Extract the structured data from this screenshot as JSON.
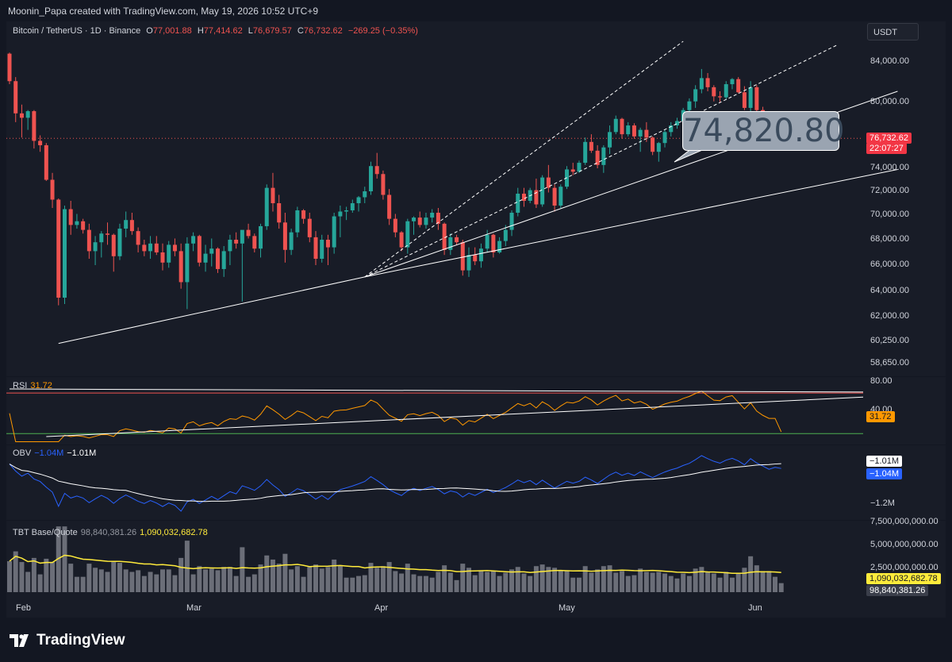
{
  "header": {
    "attribution": "Moonin_Papa created with TradingView.com, May 19, 2026 10:52 UTC+9"
  },
  "symbol": {
    "name": "Bitcoin / TetherUS · 1D · Binance",
    "o_label": "O",
    "o_value": "77,001.88",
    "h_label": "H",
    "h_value": "77,414.62",
    "l_label": "L",
    "l_value": "76,679.57",
    "c_label": "C",
    "c_value": "76,732.62",
    "change": "−269.25 (−0.35%)"
  },
  "currency_button": "USDT",
  "price_axis": {
    "ticks": [
      "84,000.00",
      "80,000.00",
      "74,000.00",
      "72,000.00",
      "70,000.00",
      "68,000.00",
      "66,000.00",
      "64,000.00",
      "62,000.00",
      "60,250.00",
      "58,650.00"
    ],
    "last_price": "76,732.62",
    "countdown": "22:07:27"
  },
  "callout": "74,820.80",
  "rsi": {
    "label": "RSI",
    "value": "31.72",
    "ticks": [
      "80.00",
      "40.00"
    ],
    "tag": "31.72"
  },
  "obv": {
    "label": "OBV",
    "value1": "−1.04M",
    "value2": "−1.01M",
    "tag_white": "−1.01M",
    "tag_blue": "−1.04M",
    "ticks": [
      "−1.2M"
    ]
  },
  "tbt": {
    "label": "TBT Base/Quote",
    "value1": "98,840,381.26",
    "value2": "1,090,032,682.78",
    "ticks": [
      "7,500,000,000.00",
      "5,000,000,000.00",
      "2,500,000,000.00"
    ],
    "tag_yellow": "1,090,032,682.78",
    "tag_gray": "98,840,381.26"
  },
  "time_axis": [
    "Feb",
    "Mar",
    "Apr",
    "May",
    "Jun"
  ],
  "brand": "TradingView",
  "colors": {
    "up": "#26a69a",
    "down": "#ef5350",
    "rsi": "#ff9800",
    "obv": "#2962ff",
    "vol_ma": "#ffeb3b",
    "bg": "#131722"
  },
  "chart_data": {
    "type": "candlestick",
    "symbol": "BTCUSDT",
    "timeframe": "1D",
    "ylim": [
      58000,
      86000
    ],
    "start_date": "2026-02-01",
    "candles_ohlc": [
      [
        84800,
        84900,
        81800,
        82100
      ],
      [
        82100,
        82500,
        78200,
        79000
      ],
      [
        79000,
        79800,
        76800,
        78600
      ],
      [
        78600,
        79300,
        77500,
        79200
      ],
      [
        79200,
        79300,
        75800,
        76500
      ],
      [
        76500,
        77000,
        75500,
        76100
      ],
      [
        76100,
        76300,
        72900,
        73000
      ],
      [
        73000,
        73600,
        70600,
        71300
      ],
      [
        71300,
        71400,
        62900,
        63500
      ],
      [
        63500,
        70800,
        63000,
        70500
      ],
      [
        70500,
        71200,
        68400,
        69200
      ],
      [
        69200,
        70100,
        68900,
        69500
      ],
      [
        69500,
        69700,
        68500,
        68800
      ],
      [
        68800,
        69300,
        66500,
        67100
      ],
      [
        67100,
        68300,
        66000,
        67800
      ],
      [
        67800,
        68700,
        66600,
        68500
      ],
      [
        68500,
        69400,
        67600,
        68400
      ],
      [
        68400,
        68500,
        65500,
        66700
      ],
      [
        66700,
        69300,
        66400,
        68900
      ],
      [
        68900,
        70300,
        68200,
        69600
      ],
      [
        69600,
        70200,
        68400,
        68700
      ],
      [
        68700,
        69000,
        67000,
        67600
      ],
      [
        67600,
        68000,
        66700,
        67100
      ],
      [
        67100,
        68300,
        66500,
        67700
      ],
      [
        67700,
        68300,
        66800,
        67000
      ],
      [
        67000,
        67700,
        65600,
        66200
      ],
      [
        66200,
        67900,
        65800,
        67600
      ],
      [
        67600,
        68100,
        66700,
        67100
      ],
      [
        67100,
        67700,
        64200,
        64700
      ],
      [
        64700,
        68200,
        62600,
        67700
      ],
      [
        67700,
        68600,
        67100,
        68300
      ],
      [
        68300,
        68400,
        65900,
        66200
      ],
      [
        66200,
        67600,
        65500,
        66900
      ],
      [
        66900,
        68100,
        65900,
        67300
      ],
      [
        67300,
        67400,
        65400,
        65700
      ],
      [
        65700,
        67500,
        65100,
        67100
      ],
      [
        67100,
        68400,
        66000,
        68000
      ],
      [
        68000,
        68600,
        67300,
        67700
      ],
      [
        67700,
        68000,
        63200,
        68800
      ],
      [
        68800,
        69300,
        68100,
        68300
      ],
      [
        68300,
        68500,
        67000,
        67300
      ],
      [
        67300,
        69300,
        66600,
        69100
      ],
      [
        69100,
        72600,
        68800,
        72300
      ],
      [
        72300,
        73600,
        70300,
        71000
      ],
      [
        71000,
        71700,
        68900,
        69400
      ],
      [
        69400,
        70200,
        66200,
        67200
      ],
      [
        67200,
        68900,
        66800,
        68600
      ],
      [
        68600,
        70700,
        68200,
        70400
      ],
      [
        70400,
        70500,
        69300,
        69700
      ],
      [
        69700,
        70200,
        67800,
        68200
      ],
      [
        68200,
        68700,
        66000,
        66500
      ],
      [
        66500,
        68400,
        66200,
        68000
      ],
      [
        68000,
        68400,
        66000,
        67400
      ],
      [
        67400,
        70200,
        66900,
        69900
      ],
      [
        69900,
        70800,
        68200,
        70300
      ],
      [
        70300,
        70700,
        69600,
        70400
      ],
      [
        70400,
        71300,
        70200,
        71000
      ],
      [
        71000,
        71600,
        70300,
        71500
      ],
      [
        71500,
        72400,
        71000,
        72000
      ],
      [
        72000,
        74600,
        71700,
        74200
      ],
      [
        74200,
        75400,
        73100,
        73500
      ],
      [
        73500,
        73800,
        71300,
        71700
      ],
      [
        71700,
        72200,
        69200,
        69700
      ],
      [
        69700,
        70100,
        68200,
        68600
      ],
      [
        68600,
        68700,
        67100,
        67400
      ],
      [
        67400,
        69700,
        66900,
        69500
      ],
      [
        69500,
        69900,
        68400,
        69800
      ],
      [
        69800,
        70300,
        69000,
        69200
      ],
      [
        69200,
        70200,
        68900,
        69800
      ],
      [
        69800,
        70500,
        69400,
        70200
      ],
      [
        70200,
        70600,
        68800,
        69300
      ],
      [
        69300,
        69400,
        66800,
        67200
      ],
      [
        67200,
        68500,
        66800,
        68200
      ],
      [
        68200,
        68400,
        67600,
        67800
      ],
      [
        67800,
        68000,
        65200,
        65600
      ],
      [
        65600,
        67400,
        65100,
        66800
      ],
      [
        66800,
        67400,
        66000,
        66300
      ],
      [
        66300,
        67700,
        65800,
        67300
      ],
      [
        67300,
        68800,
        67000,
        68400
      ],
      [
        68400,
        68500,
        66600,
        67000
      ],
      [
        67000,
        68200,
        66900,
        67900
      ],
      [
        67900,
        69200,
        67500,
        68800
      ],
      [
        68800,
        70400,
        68300,
        70200
      ],
      [
        70200,
        72300,
        69900,
        71800
      ],
      [
        71800,
        72300,
        70700,
        71200
      ],
      [
        71200,
        72300,
        71000,
        72100
      ],
      [
        72100,
        73100,
        70600,
        70900
      ],
      [
        70900,
        73400,
        70700,
        73200
      ],
      [
        73200,
        74300,
        71900,
        72300
      ],
      [
        72300,
        72600,
        70300,
        70800
      ],
      [
        70800,
        72600,
        70600,
        72400
      ],
      [
        72400,
        74200,
        72200,
        73900
      ],
      [
        73900,
        74500,
        73400,
        73700
      ],
      [
        73700,
        74700,
        73600,
        74500
      ],
      [
        74500,
        76800,
        74300,
        76400
      ],
      [
        76400,
        77100,
        75400,
        75600
      ],
      [
        75600,
        76100,
        74000,
        74300
      ],
      [
        74300,
        76100,
        73600,
        75900
      ],
      [
        75900,
        77900,
        75300,
        77300
      ],
      [
        77300,
        78800,
        77100,
        78500
      ],
      [
        78500,
        78600,
        76700,
        77100
      ],
      [
        77100,
        78200,
        76900,
        77900
      ],
      [
        77900,
        78100,
        76700,
        76900
      ],
      [
        76900,
        77700,
        75500,
        77500
      ],
      [
        77500,
        78200,
        76400,
        76800
      ],
      [
        76800,
        76900,
        75200,
        75500
      ],
      [
        75500,
        76400,
        74600,
        76300
      ],
      [
        76300,
        77500,
        75900,
        77300
      ],
      [
        77300,
        78200,
        76900,
        77900
      ],
      [
        77900,
        78600,
        77600,
        78300
      ],
      [
        78300,
        79500,
        77900,
        79300
      ],
      [
        79300,
        80400,
        79100,
        80100
      ],
      [
        80100,
        81700,
        79500,
        81300
      ],
      [
        81300,
        83300,
        80900,
        82400
      ],
      [
        82400,
        82900,
        81100,
        81500
      ],
      [
        81500,
        81700,
        80100,
        80600
      ],
      [
        80600,
        81100,
        80000,
        80500
      ],
      [
        80500,
        82100,
        80300,
        81800
      ],
      [
        81800,
        82400,
        81300,
        82300
      ],
      [
        82300,
        82500,
        80900,
        81000
      ],
      [
        81000,
        81600,
        79300,
        79500
      ],
      [
        79500,
        82100,
        78400,
        81500
      ],
      [
        81500,
        81700,
        79100,
        79300
      ],
      [
        79300,
        79600,
        77700,
        78000
      ],
      [
        78000,
        78400,
        76500,
        77000
      ],
      [
        77000,
        77400,
        76200,
        77000
      ],
      [
        77000,
        77400,
        76700,
        76732
      ]
    ],
    "trendlines": [
      {
        "from": [
          "2026-02-09",
          60100
        ],
        "to": [
          "2026-03-31",
          65100
        ]
      },
      {
        "from": [
          "2026-03-31",
          65100
        ],
        "to": [
          "2026-06-26",
          73900
        ]
      },
      {
        "from": [
          "2026-03-31",
          65100
        ],
        "to": [
          "2026-06-26",
          81100
        ]
      },
      {
        "from": [
          "2026-03-31",
          65100
        ],
        "to": [
          "2026-06-16",
          85600
        ],
        "style": "dashed"
      },
      {
        "from": [
          "2026-03-31",
          65100
        ],
        "to": [
          "2026-05-22",
          86000
        ],
        "style": "dashed"
      }
    ],
    "rsi_range": [
      20,
      85
    ],
    "rsi_last": 31.72,
    "obv_last": -1.04,
    "obv_ma_last": -1.01,
    "volume_ma_last": 1090032682.78,
    "volume_last": 98840381.26
  }
}
